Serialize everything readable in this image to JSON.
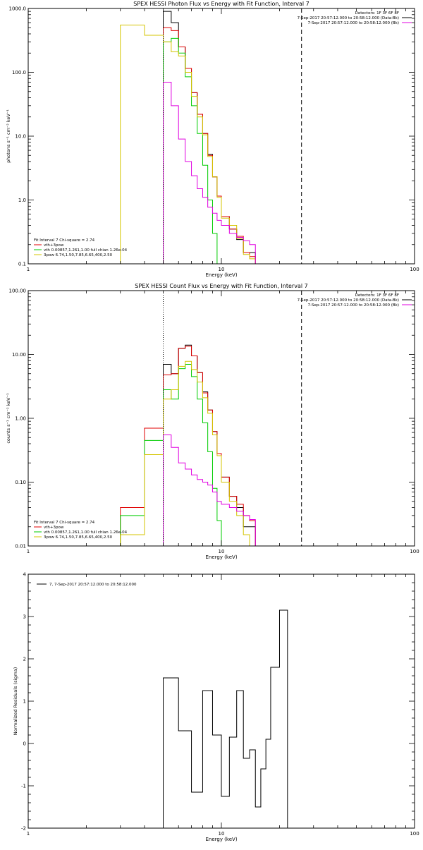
{
  "colors": {
    "data": "#000000",
    "total": "#e00000",
    "vth": "#00cc00",
    "pow": "#d4c400",
    "bk": "#e000e0"
  },
  "chart_data": [
    {
      "type": "line",
      "title": "SPEX HESSI Photon Flux vs Energy with Fit Function, Interval 7",
      "xlabel": "Energy (keV)",
      "ylabel": "photons s⁻¹ cm⁻² keV⁻¹",
      "xscale": "log",
      "yscale": "log",
      "xlim": [
        1,
        100
      ],
      "ylim": [
        0.1,
        1000
      ],
      "xticks": [
        "1",
        "10",
        "100"
      ],
      "yticks": [
        {
          "v": 0.1,
          "label": "0.1"
        },
        {
          "v": 1,
          "label": "1.0"
        },
        {
          "v": 10,
          "label": "10.0"
        },
        {
          "v": 100,
          "label": "100.0"
        },
        {
          "v": 1000,
          "label": "1000.0"
        }
      ],
      "legend_tr": [
        "Detectors: 1F 3F 6F 8F",
        "7-Sep-2017 20:57:12.000 to 20:58:12.000 (Data-Bk)",
        "7-Sep-2017 20:57:12.000 to 20:58:12.000 (Bk)"
      ],
      "legend_bl": [
        "Fit Interval  7   Chi-square = 2.74",
        "vth+3pow",
        "vth 0.00857,1.261,1.00  full chian 1.26e-04",
        "3pow 6.74,1.50,7.85,6.65,400,2.50"
      ],
      "vlines": [
        {
          "x": 5.0,
          "style": "dotted"
        },
        {
          "x": 26.0,
          "style": "dashed"
        }
      ],
      "edges": [
        3,
        4,
        5,
        5.5,
        6,
        6.5,
        7,
        7.5,
        8,
        8.5,
        9,
        9.5,
        10,
        11,
        12,
        13,
        14,
        15,
        16,
        17,
        18,
        20,
        22,
        24,
        26
      ],
      "series": [
        {
          "key": "data",
          "values": [
            null,
            null,
            900,
            600,
            250,
            115,
            48,
            22,
            11,
            5.2,
            2.3,
            1.15,
            0.55,
            0.35,
            0.24,
            0.15,
            0.15
          ]
        },
        {
          "key": "total",
          "values": [
            null,
            null,
            500,
            450,
            250,
            115,
            48,
            22,
            11,
            5.0,
            2.3,
            1.15,
            0.55,
            0.35,
            0.27,
            0.15,
            0.13
          ]
        },
        {
          "key": "vth",
          "values": [
            null,
            null,
            300,
            340,
            200,
            85,
            30,
            11,
            3.5,
            1.0,
            0.3,
            null,
            null,
            null,
            null,
            null,
            null
          ]
        },
        {
          "key": "pow",
          "values": [
            550,
            380,
            300,
            210,
            180,
            100,
            42,
            20,
            10.5,
            4.8,
            2.3,
            1.1,
            0.52,
            0.4,
            0.25,
            0.14,
            0.12
          ]
        },
        {
          "key": "bk",
          "values": [
            null,
            null,
            70,
            30,
            9,
            4,
            2.4,
            1.5,
            1.1,
            0.77,
            0.62,
            0.48,
            0.4,
            0.3,
            0.26,
            0.23,
            0.2
          ]
        }
      ]
    },
    {
      "type": "line",
      "title": "SPEX HESSI Count Flux vs Energy with Fit Function, Interval 7",
      "xlabel": "Energy (keV)",
      "ylabel": "counts s⁻¹ cm⁻² keV⁻¹",
      "xscale": "log",
      "yscale": "log",
      "xlim": [
        1,
        100
      ],
      "ylim": [
        0.01,
        100
      ],
      "xticks": [
        "1",
        "10",
        "100"
      ],
      "yticks": [
        {
          "v": 0.01,
          "label": "0.01"
        },
        {
          "v": 0.1,
          "label": "0.10"
        },
        {
          "v": 1,
          "label": "1.00"
        },
        {
          "v": 10,
          "label": "10.00"
        },
        {
          "v": 100,
          "label": "100.00"
        }
      ],
      "legend_tr": [
        "Detectors: 1F 3F 6F 8F",
        "7-Sep-2017 20:57:12.000 to 20:58:12.000 (Data-Bk)",
        "7-Sep-2017 20:57:12.000 to 20:58:12.000 (Bk)"
      ],
      "legend_bl": [
        "Fit Interval  7   Chi-square = 2.74",
        "vth+3pow",
        "vth 0.00857,1.261,1.00  full chian 1.26e-04",
        "3pow 6.74,1.50,7.85,6.65,400,2.50"
      ],
      "vlines": [
        {
          "x": 5.0,
          "style": "dotted"
        },
        {
          "x": 26.0,
          "style": "dashed"
        }
      ],
      "edges": [
        3,
        4,
        5,
        5.5,
        6,
        6.5,
        7,
        7.5,
        8,
        8.5,
        9,
        9.5,
        10,
        11,
        12,
        13,
        14,
        15,
        16,
        17,
        18,
        20,
        22,
        24,
        26
      ],
      "series": [
        {
          "key": "data",
          "values": [
            null,
            null,
            7.0,
            5.0,
            12.5,
            14,
            9.5,
            5.2,
            2.6,
            1.35,
            0.62,
            0.28,
            0.12,
            0.06,
            0.04,
            0.02,
            0.02
          ]
        },
        {
          "key": "total",
          "values": [
            0.04,
            0.7,
            4.8,
            5.0,
            12.5,
            13.5,
            9.5,
            5.2,
            2.5,
            1.35,
            0.62,
            0.28,
            0.12,
            0.06,
            0.045,
            0.03,
            0.025
          ]
        },
        {
          "key": "vth",
          "values": [
            0.03,
            0.45,
            2.8,
            2.0,
            6.0,
            7.0,
            4.5,
            2.0,
            0.85,
            0.3,
            0.08,
            0.025,
            null,
            null,
            null,
            null,
            null
          ]
        },
        {
          "key": "pow",
          "values": [
            0.015,
            0.27,
            2.0,
            2.8,
            6.5,
            7.8,
            5.8,
            3.7,
            2.1,
            1.2,
            0.55,
            0.26,
            0.1,
            0.05,
            0.03,
            0.015,
            null
          ]
        },
        {
          "key": "bk",
          "values": [
            null,
            null,
            0.55,
            0.35,
            0.2,
            0.16,
            0.13,
            0.11,
            0.1,
            0.09,
            0.07,
            0.05,
            0.045,
            0.04,
            0.035,
            0.03,
            0.026
          ]
        }
      ]
    },
    {
      "type": "line",
      "title": "",
      "xlabel": "Energy (keV)",
      "ylabel": "Normalized Residuals (sigma)",
      "xscale": "log",
      "yscale": "linear",
      "xlim": [
        1,
        100
      ],
      "ylim": [
        -2,
        4
      ],
      "xticks": [
        "1",
        "10",
        "100"
      ],
      "yticks": [
        {
          "v": -2,
          "label": "-2"
        },
        {
          "v": -1,
          "label": "-1"
        },
        {
          "v": 0,
          "label": "0"
        },
        {
          "v": 1,
          "label": "1"
        },
        {
          "v": 2,
          "label": "2"
        },
        {
          "v": 3,
          "label": "3"
        },
        {
          "v": 4,
          "label": "4"
        }
      ],
      "legend_tl": "7,  7-Sep-2017 20:57:12.000 to 20:58:12.000",
      "edges": [
        5,
        6,
        7,
        8,
        9,
        10,
        11,
        12,
        13,
        14,
        15,
        16,
        17,
        18,
        20,
        22,
        24,
        26
      ],
      "series": [
        {
          "key": "data",
          "values": [
            1.55,
            0.3,
            -1.15,
            1.25,
            0.2,
            -1.25,
            0.15,
            1.25,
            -0.35,
            -0.15,
            -1.5,
            -0.6,
            0.1,
            1.8,
            3.15
          ]
        }
      ]
    }
  ]
}
